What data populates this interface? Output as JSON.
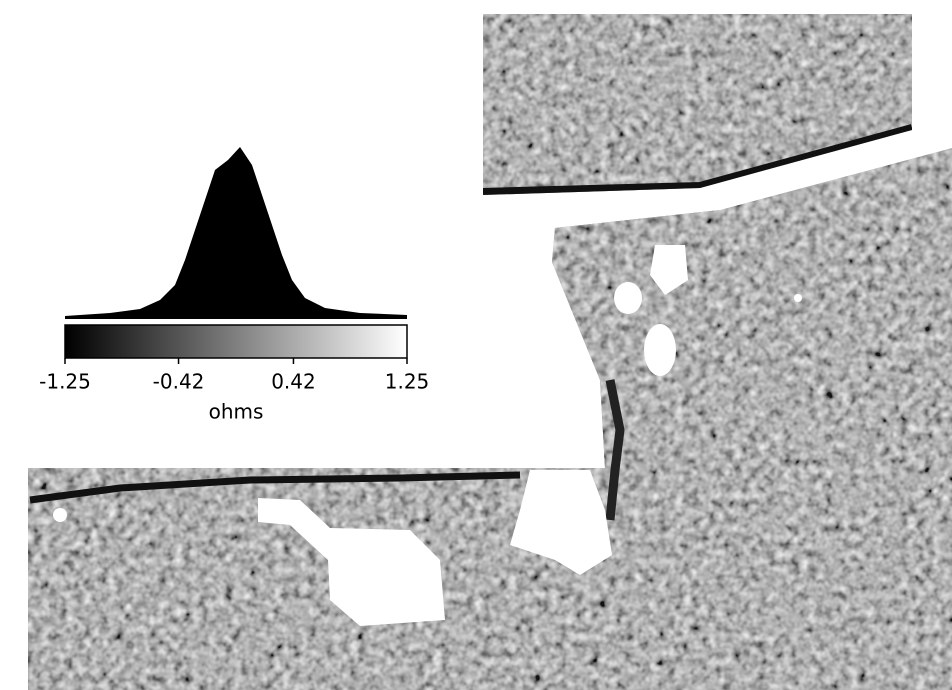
{
  "colorbar": {
    "lim": [
      -1.25,
      1.25
    ],
    "ticks": [
      -1.25,
      -0.42,
      0.42,
      1.25
    ],
    "label": "ohms"
  }
}
